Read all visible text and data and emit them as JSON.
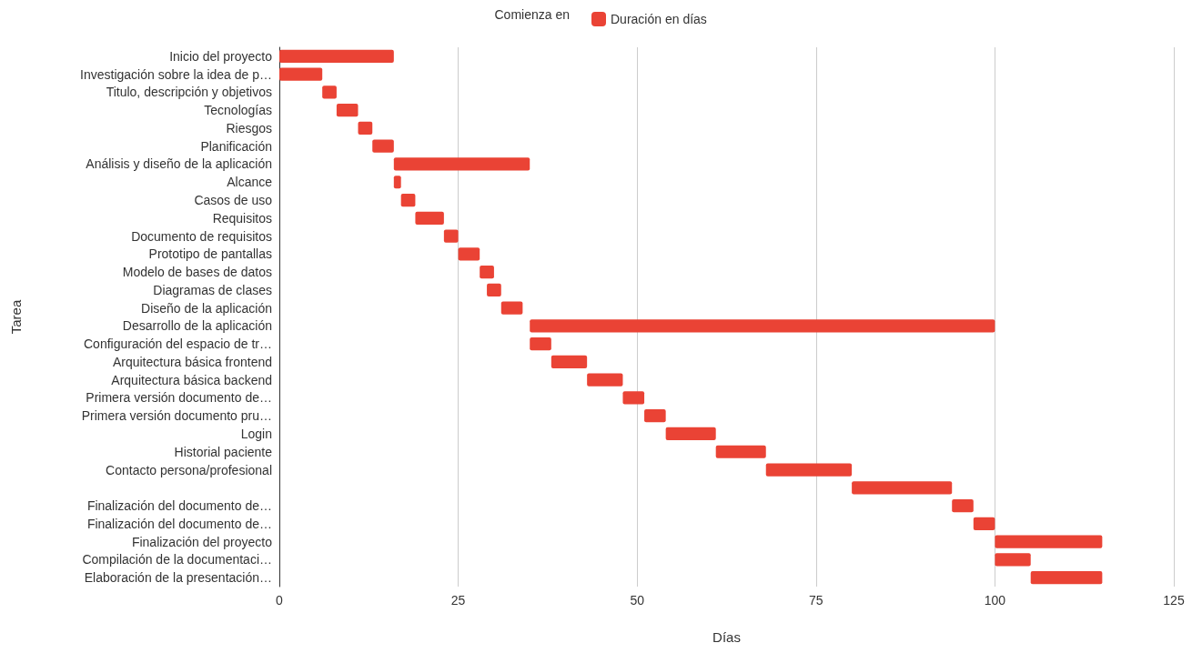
{
  "chart_data": {
    "type": "bar",
    "orientation": "horizontal",
    "xlabel": "Días",
    "ylabel": "Tarea",
    "legend_title": "Comienza en",
    "legend": "top",
    "categories": [
      "Inicio del proyecto",
      "Investigación sobre la idea de p…",
      "Titulo, descripción y objetivos",
      "Tecnologías",
      "Riesgos",
      "Planificación",
      "Análisis y diseño de la aplicación",
      "Alcance",
      "Casos de uso",
      "Requisitos",
      "Documento de requisitos",
      "Prototipo de pantallas",
      "Modelo de bases de datos",
      "Diagramas de clases",
      "Diseño de la aplicación",
      "Desarrollo de la aplicación",
      "Configuración del espacio de tr…",
      "Arquitectura básica frontend",
      "Arquitectura básica backend",
      "Primera versión documento de…",
      "Primera versión documento pru…",
      "Login",
      "Historial paciente",
      "Contacto persona/profesional",
      null,
      "Finalización del documento de…",
      "Finalización del documento de…",
      "Finalización del proyecto",
      "Compilación de la documentaci…",
      "Elaboración de la presentación…"
    ],
    "series": [
      {
        "name": "Duración en días",
        "color": "#ea4335",
        "base": [
          0,
          0,
          6,
          8,
          11,
          13,
          16,
          16,
          17,
          19,
          23,
          25,
          28,
          29,
          31,
          35,
          35,
          38,
          43,
          48,
          51,
          54,
          61,
          68,
          80,
          94,
          97,
          100,
          100,
          105
        ],
        "values": [
          16,
          6,
          2,
          3,
          2,
          3,
          19,
          1,
          2,
          4,
          2,
          3,
          2,
          2,
          3,
          65,
          3,
          5,
          5,
          3,
          3,
          7,
          7,
          12,
          14,
          3,
          3,
          15,
          5,
          10
        ]
      }
    ],
    "xlim": [
      0,
      125
    ],
    "xticks": [
      0,
      25,
      50,
      75,
      100,
      125
    ],
    "grid": "x"
  }
}
